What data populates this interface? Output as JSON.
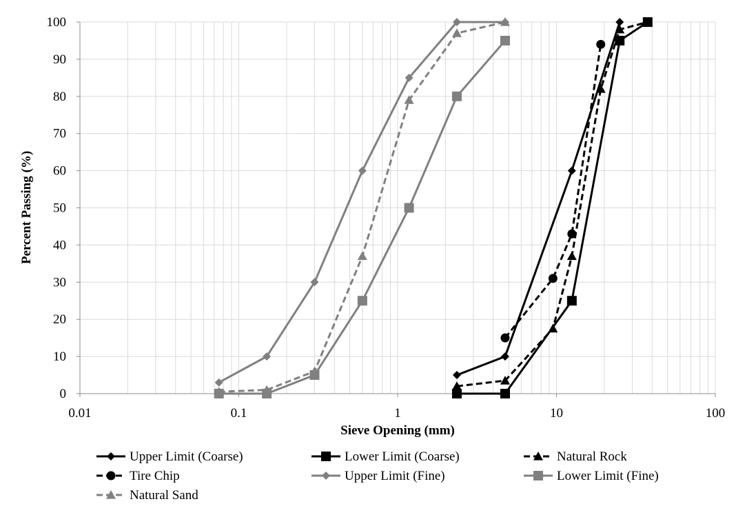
{
  "chart_data": {
    "type": "line",
    "xlabel": "Sieve Opening (mm)",
    "ylabel": "Percent Passing (%)",
    "x_scale": "log",
    "xlim": [
      0.01,
      100
    ],
    "ylim": [
      0,
      100
    ],
    "x_ticks": [
      "0.01",
      "0.1",
      "1",
      "10",
      "100"
    ],
    "y_ticks": [
      "0",
      "10",
      "20",
      "30",
      "40",
      "50",
      "60",
      "70",
      "80",
      "90",
      "100"
    ],
    "grid": true,
    "legend_position": "bottom",
    "series": [
      {
        "name": "Upper Limit (Coarse)",
        "color": "#000000",
        "dash": "solid",
        "marker": "diamond",
        "x": [
          2.36,
          4.75,
          12.5,
          25
        ],
        "y": [
          5,
          10,
          60,
          100
        ]
      },
      {
        "name": "Lower Limit (Coarse)",
        "color": "#000000",
        "dash": "solid",
        "marker": "square",
        "x": [
          2.36,
          4.75,
          12.5,
          25,
          37.5
        ],
        "y": [
          0,
          0,
          25,
          95,
          100
        ]
      },
      {
        "name": "Natural Rock",
        "color": "#000000",
        "dash": "dashed",
        "marker": "triangle",
        "x": [
          2.36,
          4.75,
          9.5,
          12.5,
          19,
          25,
          37.5
        ],
        "y": [
          2,
          3.5,
          17.5,
          37,
          82,
          98,
          100
        ]
      },
      {
        "name": "Tire Chip",
        "color": "#000000",
        "dash": "dashed",
        "marker": "circle",
        "x": [
          4.75,
          9.5,
          12.5,
          19
        ],
        "y": [
          15,
          31,
          43,
          94
        ]
      },
      {
        "name": "Upper Limit (Fine)",
        "color": "#808080",
        "dash": "solid",
        "marker": "diamond",
        "x": [
          0.075,
          0.15,
          0.3,
          0.6,
          1.18,
          2.36,
          4.75
        ],
        "y": [
          3,
          10,
          30,
          60,
          85,
          100,
          100
        ]
      },
      {
        "name": "Lower Limit (Fine)",
        "color": "#808080",
        "dash": "solid",
        "marker": "square",
        "x": [
          0.075,
          0.15,
          0.3,
          0.6,
          1.18,
          2.36,
          4.75
        ],
        "y": [
          0,
          0,
          5,
          25,
          50,
          80,
          95
        ]
      },
      {
        "name": "Natural Sand",
        "color": "#808080",
        "dash": "dashed",
        "marker": "triangle",
        "x": [
          0.075,
          0.15,
          0.3,
          0.6,
          1.18,
          2.36,
          4.75
        ],
        "y": [
          0.5,
          1,
          6,
          37,
          79,
          97,
          100
        ]
      }
    ]
  }
}
